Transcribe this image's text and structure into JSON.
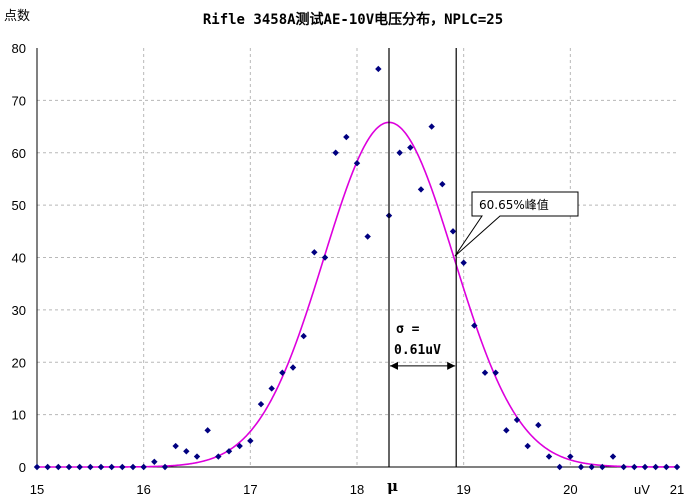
{
  "chart_data": {
    "type": "scatter",
    "title": "Rifle 3458A测试AE-10V电压分布，NPLC=25",
    "ylabel": "点数",
    "xlabel": "uV",
    "xlim": [
      15,
      21
    ],
    "ylim": [
      0,
      80
    ],
    "xticks": [
      "15",
      "16",
      "17",
      "18",
      "19",
      "20",
      "21"
    ],
    "yticks": [
      "0",
      "10",
      "20",
      "30",
      "40",
      "50",
      "60",
      "70",
      "80"
    ],
    "grid": true,
    "series": [
      {
        "kind": "scatter",
        "color": "#000080",
        "points": [
          [
            15.0,
            0
          ],
          [
            15.1,
            0
          ],
          [
            15.2,
            0
          ],
          [
            15.3,
            0
          ],
          [
            15.4,
            0
          ],
          [
            15.5,
            0
          ],
          [
            15.6,
            0
          ],
          [
            15.7,
            0
          ],
          [
            15.8,
            0
          ],
          [
            15.9,
            0
          ],
          [
            16.0,
            0
          ],
          [
            16.1,
            1
          ],
          [
            16.2,
            0
          ],
          [
            16.3,
            4
          ],
          [
            16.4,
            3
          ],
          [
            16.5,
            2
          ],
          [
            16.6,
            7
          ],
          [
            16.7,
            2
          ],
          [
            16.8,
            3
          ],
          [
            16.9,
            4
          ],
          [
            17.0,
            5
          ],
          [
            17.1,
            12
          ],
          [
            17.2,
            15
          ],
          [
            17.3,
            18
          ],
          [
            17.4,
            19
          ],
          [
            17.5,
            25
          ],
          [
            17.6,
            41
          ],
          [
            17.7,
            40
          ],
          [
            17.8,
            60
          ],
          [
            17.9,
            63
          ],
          [
            18.0,
            58
          ],
          [
            18.1,
            44
          ],
          [
            18.2,
            76
          ],
          [
            18.3,
            48
          ],
          [
            18.4,
            60
          ],
          [
            18.5,
            61
          ],
          [
            18.6,
            53
          ],
          [
            18.7,
            65
          ],
          [
            18.8,
            54
          ],
          [
            18.9,
            45
          ],
          [
            19.0,
            39
          ],
          [
            19.1,
            27
          ],
          [
            19.2,
            18
          ],
          [
            19.3,
            18
          ],
          [
            19.4,
            7
          ],
          [
            19.5,
            9
          ],
          [
            19.6,
            4
          ],
          [
            19.7,
            8
          ],
          [
            19.8,
            2
          ],
          [
            19.9,
            0
          ],
          [
            20.0,
            2
          ],
          [
            20.1,
            0
          ],
          [
            20.2,
            0
          ],
          [
            20.3,
            0
          ],
          [
            20.4,
            2
          ],
          [
            20.5,
            0
          ],
          [
            20.6,
            0
          ],
          [
            20.7,
            0
          ],
          [
            20.8,
            0
          ],
          [
            20.9,
            0
          ],
          [
            21.0,
            0
          ]
        ]
      },
      {
        "kind": "gaussian-fit",
        "color": "#dd00dd",
        "mu": 18.3,
        "sigma": 0.61,
        "peak": 65.8
      }
    ],
    "vlines": [
      18.3,
      18.93
    ],
    "annotations": {
      "mu_label": "μ",
      "sigma_line1": "σ =",
      "sigma_line2": "0.61uV",
      "callout": "60.65%峰值"
    }
  }
}
